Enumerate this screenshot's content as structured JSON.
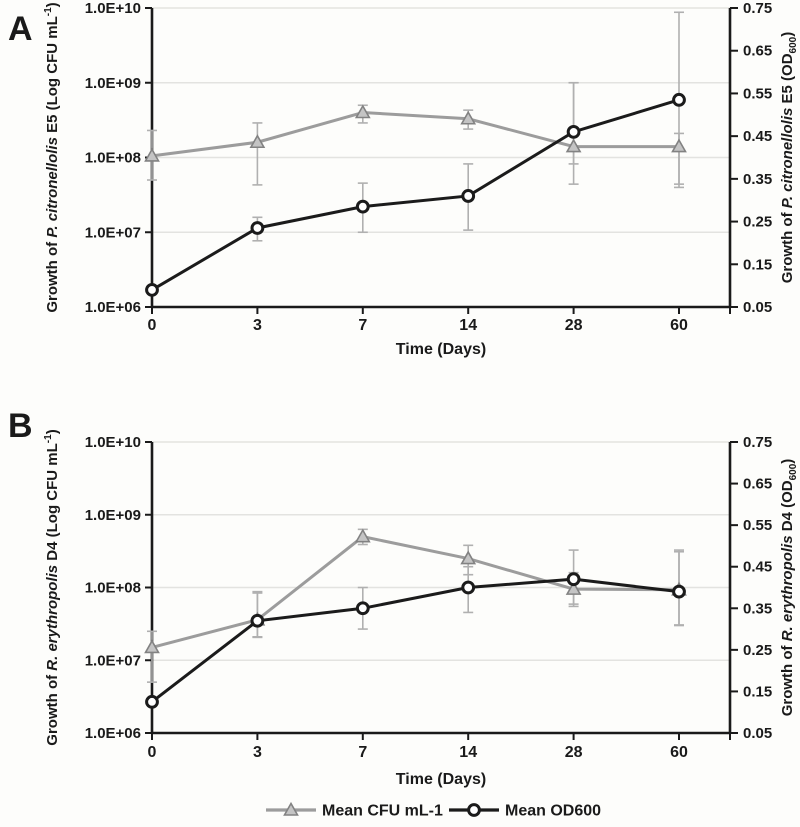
{
  "figure": {
    "bg": "#fdfdfb",
    "panel_labels": [
      "A",
      "B"
    ]
  },
  "colors": {
    "axis": "#1a1a1a",
    "grid": "#e3e3e0",
    "error": "#b0b0b0",
    "cfu_line": "#9c9c9c",
    "cfu_marker_fill": "#c4c4c4",
    "cfu_marker_edge": "#828282",
    "od_line": "#1b1b1b",
    "od_marker_fill": "#ffffff"
  },
  "legend": {
    "items": [
      {
        "id": "cfu",
        "label": "Mean CFU mL-1",
        "marker": "triangle"
      },
      {
        "id": "od",
        "label": "Mean OD600",
        "marker": "circle"
      }
    ]
  },
  "chart_data": [
    {
      "type": "line",
      "panel_label": "A",
      "xlabel": "Time (Days)",
      "x_categories": [
        "0",
        "3",
        "7",
        "14",
        "28",
        "60"
      ],
      "left_axis": {
        "scale": "log",
        "range": [
          1000000,
          10000000000
        ],
        "ticks": [
          "1.0E+10",
          "1.0E+09",
          "1.0E+08",
          "1.0E+07",
          "1.0E+06"
        ],
        "tick_values": [
          10000000000,
          1000000000,
          100000000,
          10000000,
          1000000
        ],
        "title_parts": [
          {
            "t": "Growth of ",
            "s": "n"
          },
          {
            "t": "P. citronellolis",
            "s": "i"
          },
          {
            "t": " E5 (Log CFU mL",
            "s": "n"
          },
          {
            "t": "-1",
            "s": "sup"
          },
          {
            "t": ")",
            "s": "n"
          }
        ]
      },
      "right_axis": {
        "scale": "linear",
        "range": [
          0.05,
          0.75
        ],
        "ticks": [
          "0.75",
          "0.65",
          "0.55",
          "0.45",
          "0.35",
          "0.25",
          "0.15",
          "0.05"
        ],
        "tick_values": [
          0.75,
          0.65,
          0.55,
          0.45,
          0.35,
          0.25,
          0.15,
          0.05
        ],
        "title_parts": [
          {
            "t": "Growth of ",
            "s": "n"
          },
          {
            "t": "P. citronellolis",
            "s": "i"
          },
          {
            "t": " E5 (OD",
            "s": "n"
          },
          {
            "t": "600",
            "s": "sub"
          },
          {
            "t": ")",
            "s": "n"
          }
        ]
      },
      "series": [
        {
          "name": "Mean CFU mL-1",
          "axis": "left",
          "marker": "triangle",
          "values": [
            105000000,
            160000000,
            400000000,
            330000000,
            140000000,
            140000000
          ],
          "err_low": [
            50000000,
            43000000,
            290000000,
            240000000,
            44000000,
            44000000
          ],
          "err_high": [
            230000000,
            290000000,
            500000000,
            430000000,
            1000000000,
            210000000
          ]
        },
        {
          "name": "Mean OD600",
          "axis": "right",
          "marker": "circle",
          "values": [
            0.09,
            0.235,
            0.285,
            0.31,
            0.46,
            0.535
          ],
          "err_low": [
            0.085,
            0.205,
            0.225,
            0.23,
            0.385,
            0.33
          ],
          "err_high": [
            0.095,
            0.26,
            0.34,
            0.385,
            0.575,
            0.74
          ]
        }
      ]
    },
    {
      "type": "line",
      "panel_label": "B",
      "xlabel": "Time (Days)",
      "x_categories": [
        "0",
        "3",
        "7",
        "14",
        "28",
        "60"
      ],
      "left_axis": {
        "scale": "log",
        "range": [
          1000000,
          10000000000
        ],
        "ticks": [
          "1.0E+10",
          "1.0E+09",
          "1.0E+08",
          "1.0E+07",
          "1.0E+06"
        ],
        "tick_values": [
          10000000000,
          1000000000,
          100000000,
          10000000,
          1000000
        ],
        "title_parts": [
          {
            "t": "Growth of ",
            "s": "n"
          },
          {
            "t": "R. erythropolis",
            "s": "i"
          },
          {
            "t": " D4 (Log CFU mL",
            "s": "n"
          },
          {
            "t": "-1",
            "s": "sup"
          },
          {
            "t": ")",
            "s": "n"
          }
        ]
      },
      "right_axis": {
        "scale": "linear",
        "range": [
          0.05,
          0.75
        ],
        "ticks": [
          "0.75",
          "0.65",
          "0.55",
          "0.45",
          "0.35",
          "0.25",
          "0.15",
          "0.05"
        ],
        "tick_values": [
          0.75,
          0.65,
          0.55,
          0.45,
          0.35,
          0.25,
          0.15,
          0.05
        ],
        "title_parts": [
          {
            "t": "Growth of ",
            "s": "n"
          },
          {
            "t": "R. erythropolis",
            "s": "i"
          },
          {
            "t": " D4 (OD",
            "s": "n"
          },
          {
            "t": "600",
            "s": "sub"
          },
          {
            "t": ")",
            "s": "n"
          }
        ]
      },
      "series": [
        {
          "name": "Mean CFU mL-1",
          "axis": "left",
          "marker": "triangle",
          "values": [
            15000000,
            36000000,
            500000000,
            250000000,
            95000000,
            93000000
          ],
          "err_low": [
            5000000,
            21000000,
            390000000,
            150000000,
            55000000,
            30000000
          ],
          "err_high": [
            25000000,
            84000000,
            630000000,
            380000000,
            160000000,
            310000000
          ]
        },
        {
          "name": "Mean OD600",
          "axis": "right",
          "marker": "circle",
          "values": [
            0.125,
            0.32,
            0.35,
            0.4,
            0.42,
            0.39
          ],
          "err_low": [
            0.115,
            0.28,
            0.3,
            0.34,
            0.36,
            0.31
          ],
          "err_high": [
            0.135,
            0.39,
            0.4,
            0.45,
            0.49,
            0.49
          ]
        }
      ]
    }
  ]
}
